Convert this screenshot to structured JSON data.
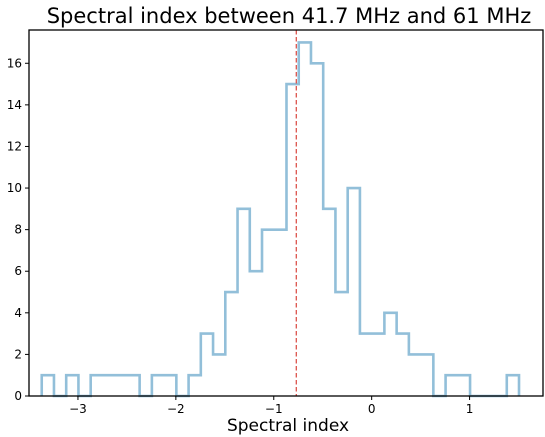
{
  "chart_data": {
    "type": "histogram",
    "title": "Spectral index between 41.7 MHz and 61 MHz",
    "xlabel": "Spectral index",
    "ylabel": "",
    "xlim": [
      -3.5,
      1.75
    ],
    "ylim": [
      0,
      17.6
    ],
    "xticks": [
      -3,
      -2,
      -1,
      0,
      1
    ],
    "xtick_labels": [
      "−3",
      "−2",
      "−1",
      "0",
      "1"
    ],
    "yticks": [
      0,
      2,
      4,
      6,
      8,
      10,
      12,
      14,
      16
    ],
    "yticks_labels": [
      "0",
      "2",
      "4",
      "6",
      "8",
      "10",
      "12",
      "14",
      "16"
    ],
    "bin_edges": [
      -3.37,
      -3.245,
      -3.12,
      -2.995,
      -2.87,
      -2.745,
      -2.62,
      -2.495,
      -2.37,
      -2.245,
      -2.12,
      -1.995,
      -1.87,
      -1.745,
      -1.62,
      -1.495,
      -1.37,
      -1.245,
      -1.12,
      -0.995,
      -0.87,
      -0.745,
      -0.62,
      -0.495,
      -0.37,
      -0.245,
      -0.12,
      0.005,
      0.13,
      0.255,
      0.38,
      0.505,
      0.63,
      0.755,
      0.88,
      1.005,
      1.13,
      1.255,
      1.38,
      1.505
    ],
    "counts": [
      1,
      0,
      1,
      0,
      1,
      1,
      1,
      1,
      0,
      1,
      1,
      0,
      1,
      3,
      2,
      5,
      9,
      6,
      8,
      8,
      15,
      17,
      16,
      9,
      5,
      10,
      3,
      3,
      4,
      3,
      2,
      2,
      0,
      1,
      1,
      0,
      0,
      0,
      1
    ],
    "vline": -0.77,
    "colors": {
      "histogram": "#92bfd9",
      "vline": "#d9453d"
    },
    "grid": false
  }
}
